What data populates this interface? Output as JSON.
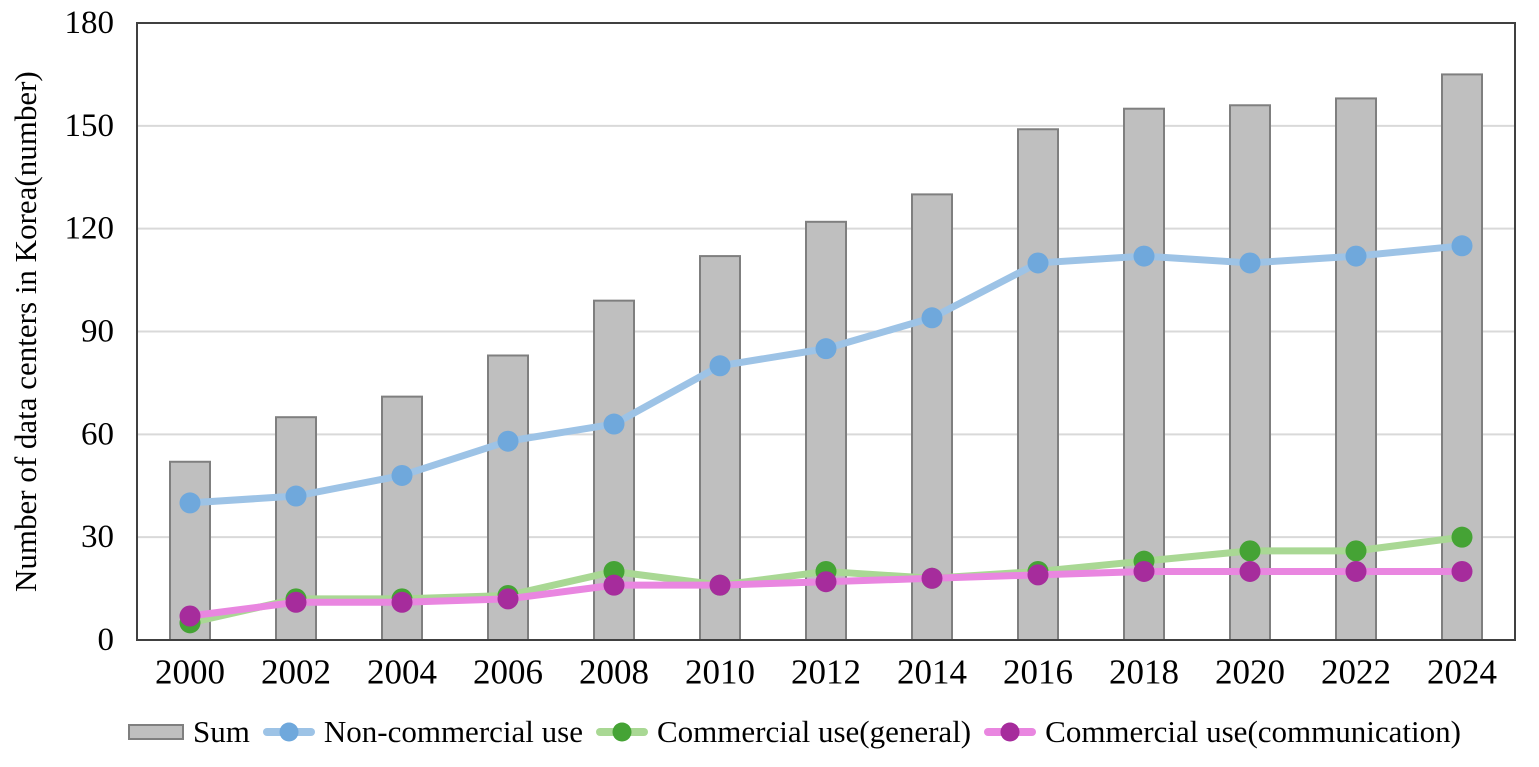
{
  "chart_data": {
    "type": "combo-bar-line",
    "title": "",
    "ylabel": "Number of data centers in Korea(number)",
    "xlabel": "",
    "ylim": [
      0,
      180
    ],
    "yticks": [
      0,
      30,
      60,
      90,
      120,
      150,
      180
    ],
    "grid": "horizontal",
    "legend_position": "bottom",
    "categories": [
      "2000",
      "2002",
      "2004",
      "2006",
      "2008",
      "2010",
      "2012",
      "2014",
      "2016",
      "2018",
      "2020",
      "2022",
      "2024"
    ],
    "series": [
      {
        "name": "Sum",
        "type": "bar",
        "values": [
          52,
          65,
          71,
          83,
          99,
          112,
          122,
          130,
          149,
          155,
          156,
          158,
          165
        ],
        "fill": "#bfbfbf",
        "border": "#7f7f7f"
      },
      {
        "name": "Non-commercial use",
        "type": "line",
        "values": [
          40,
          42,
          48,
          58,
          63,
          80,
          85,
          94,
          110,
          112,
          110,
          112,
          115
        ],
        "line_color": "#9dc3e6",
        "marker_color": "#6fa8dc"
      },
      {
        "name": "Commercial use(general)",
        "type": "line",
        "values": [
          5,
          12,
          12,
          13,
          20,
          16,
          20,
          18,
          20,
          23,
          26,
          26,
          30
        ],
        "line_color": "#a9d894",
        "marker_color": "#45a335"
      },
      {
        "name": "Commercial use(communication)",
        "type": "line",
        "values": [
          7,
          11,
          11,
          12,
          16,
          16,
          17,
          18,
          19,
          20,
          20,
          20,
          20
        ],
        "line_color": "#e986e0",
        "marker_color": "#a62c9c"
      }
    ],
    "colors": {
      "gridline": "#d9d9d9",
      "plot_border": "#404040",
      "tick_label": "#000000"
    }
  }
}
